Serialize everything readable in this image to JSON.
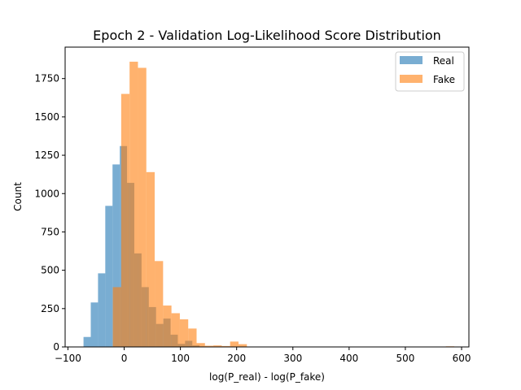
{
  "chart_data": {
    "type": "bar",
    "subtype": "histogram-overlay",
    "title": "Epoch 2 - Validation Log-Likelihood Score Distribution",
    "xlabel": "log(P_real) - log(P_fake)",
    "ylabel": "Count",
    "xlim": [
      -105,
      613
    ],
    "ylim": [
      0,
      1955
    ],
    "xticks": [
      -100,
      0,
      100,
      200,
      300,
      400,
      500,
      600
    ],
    "yticks": [
      0,
      250,
      500,
      750,
      1000,
      1250,
      1500,
      1750
    ],
    "grid": false,
    "legend_position": "top-right",
    "series": [
      {
        "name": "Real",
        "color": "#1f77b4",
        "opacity": 0.6,
        "bins": [
          {
            "x0": -72.3,
            "x1": -59.4,
            "count": 65
          },
          {
            "x0": -59.4,
            "x1": -46.5,
            "count": 290
          },
          {
            "x0": -46.5,
            "x1": -33.6,
            "count": 480
          },
          {
            "x0": -33.6,
            "x1": -20.7,
            "count": 920
          },
          {
            "x0": -20.7,
            "x1": -7.8,
            "count": 1190
          },
          {
            "x0": -7.8,
            "x1": 5.1,
            "count": 1310
          },
          {
            "x0": 5.1,
            "x1": 18.0,
            "count": 1070
          },
          {
            "x0": 18.0,
            "x1": 30.9,
            "count": 610
          },
          {
            "x0": 30.9,
            "x1": 43.8,
            "count": 390
          },
          {
            "x0": 43.8,
            "x1": 56.7,
            "count": 260
          },
          {
            "x0": 56.7,
            "x1": 69.6,
            "count": 150
          },
          {
            "x0": 69.6,
            "x1": 82.5,
            "count": 185
          },
          {
            "x0": 82.5,
            "x1": 95.4,
            "count": 80
          },
          {
            "x0": 95.4,
            "x1": 108.3,
            "count": 20
          },
          {
            "x0": 108.3,
            "x1": 121.2,
            "count": 40
          },
          {
            "x0": 121.2,
            "x1": 134.1,
            "count": 10
          },
          {
            "x0": 134.1,
            "x1": 147.0,
            "count": 3
          }
        ]
      },
      {
        "name": "Fake",
        "color": "#ff7f0e",
        "opacity": 0.6,
        "bins": [
          {
            "x0": -20.2,
            "x1": -5.3,
            "count": 390
          },
          {
            "x0": -5.3,
            "x1": 9.6,
            "count": 1650
          },
          {
            "x0": 9.6,
            "x1": 24.5,
            "count": 1860
          },
          {
            "x0": 24.5,
            "x1": 39.4,
            "count": 1820
          },
          {
            "x0": 39.4,
            "x1": 54.3,
            "count": 1140
          },
          {
            "x0": 54.3,
            "x1": 69.2,
            "count": 560
          },
          {
            "x0": 69.2,
            "x1": 84.1,
            "count": 270
          },
          {
            "x0": 84.1,
            "x1": 99.0,
            "count": 220
          },
          {
            "x0": 99.0,
            "x1": 113.9,
            "count": 180
          },
          {
            "x0": 113.9,
            "x1": 128.8,
            "count": 120
          },
          {
            "x0": 128.8,
            "x1": 143.7,
            "count": 25
          },
          {
            "x0": 143.7,
            "x1": 158.6,
            "count": 8
          },
          {
            "x0": 158.6,
            "x1": 173.5,
            "count": 10
          },
          {
            "x0": 173.5,
            "x1": 188.4,
            "count": 6
          },
          {
            "x0": 188.4,
            "x1": 203.3,
            "count": 35
          },
          {
            "x0": 203.3,
            "x1": 218.2,
            "count": 18
          },
          {
            "x0": 572.0,
            "x1": 586.9,
            "count": 4
          }
        ]
      }
    ]
  }
}
